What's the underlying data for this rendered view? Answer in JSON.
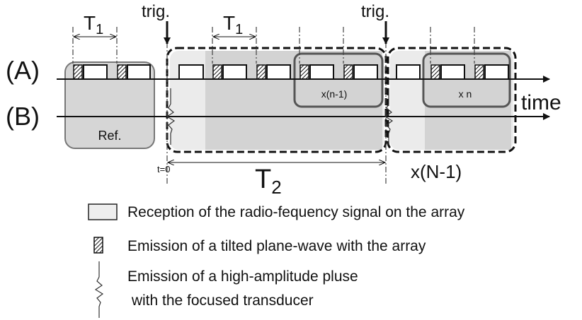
{
  "labels": {
    "t1_left": {
      "main": "T",
      "sub": "1"
    },
    "t1_right": {
      "main": "T",
      "sub": "1"
    },
    "trig_left": "trig.",
    "trig_right": "trig.",
    "row_a": "(A)",
    "row_b": "(B)",
    "time": "time",
    "ref": "Ref.",
    "inner_loop_1": "x(n-1)",
    "inner_loop_2": "x n",
    "t_zero": "t=0",
    "t2": {
      "main": "T",
      "sub": "2"
    },
    "outer_loop": "x(N-1)"
  },
  "legend": {
    "reception": "Reception of the radio-fequency signal on the array",
    "emission_plane": "Emission of a tilted plane-wave with the array",
    "emission_pulse": [
      "Emission of a high-amplitude pluse",
      " with the focused transducer"
    ]
  }
}
